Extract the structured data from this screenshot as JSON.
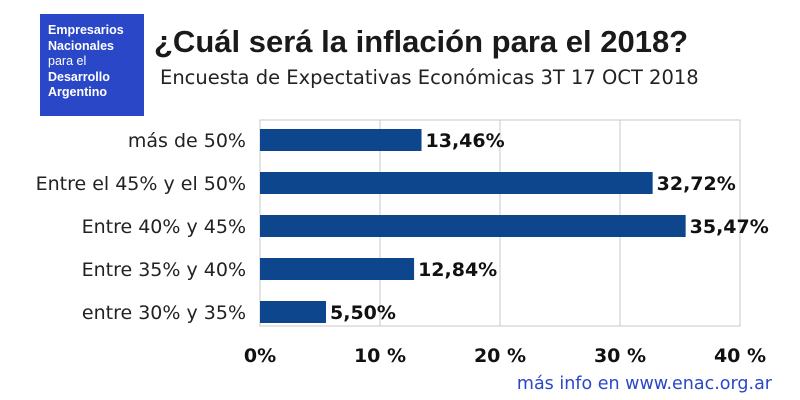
{
  "logo": {
    "lines": [
      {
        "text": "Empresarios",
        "bold": true
      },
      {
        "text": "Nacionales",
        "bold": true
      },
      {
        "text": "para el",
        "bold": false
      },
      {
        "text": "Desarrollo",
        "bold": true
      },
      {
        "text": "Argentino",
        "bold": true
      }
    ]
  },
  "header": {
    "title": "¿Cuál será la inflación para el 2018?",
    "subtitle": "Encuesta de Expectativas Económicas 3T  17 OCT 2018"
  },
  "footer": {
    "text": "más info en www.enac.org.ar"
  },
  "colors": {
    "bar": "#0e468d",
    "logo_bg": "#2a47c8",
    "link": "#2a47c8",
    "grid": "#c8c8c8"
  },
  "chart_data": {
    "type": "bar",
    "orientation": "horizontal",
    "categories": [
      "más de 50%",
      "Entre el 45% y el 50%",
      "Entre 40% y 45%",
      "Entre 35% y 40%",
      "entre 30% y 35%"
    ],
    "values": [
      13.46,
      32.72,
      35.47,
      12.84,
      5.5
    ],
    "value_labels": [
      "13,46%",
      "32,72%",
      "35,47%",
      "12,84%",
      "5,50%"
    ],
    "xlim": [
      0,
      40
    ],
    "xticks": [
      0,
      10,
      20,
      30,
      40
    ],
    "xtick_labels": [
      "0%",
      "10 %",
      "20 %",
      "30 %",
      "40 %"
    ],
    "grid": true,
    "legend": "none",
    "xlabel": "",
    "ylabel": ""
  }
}
